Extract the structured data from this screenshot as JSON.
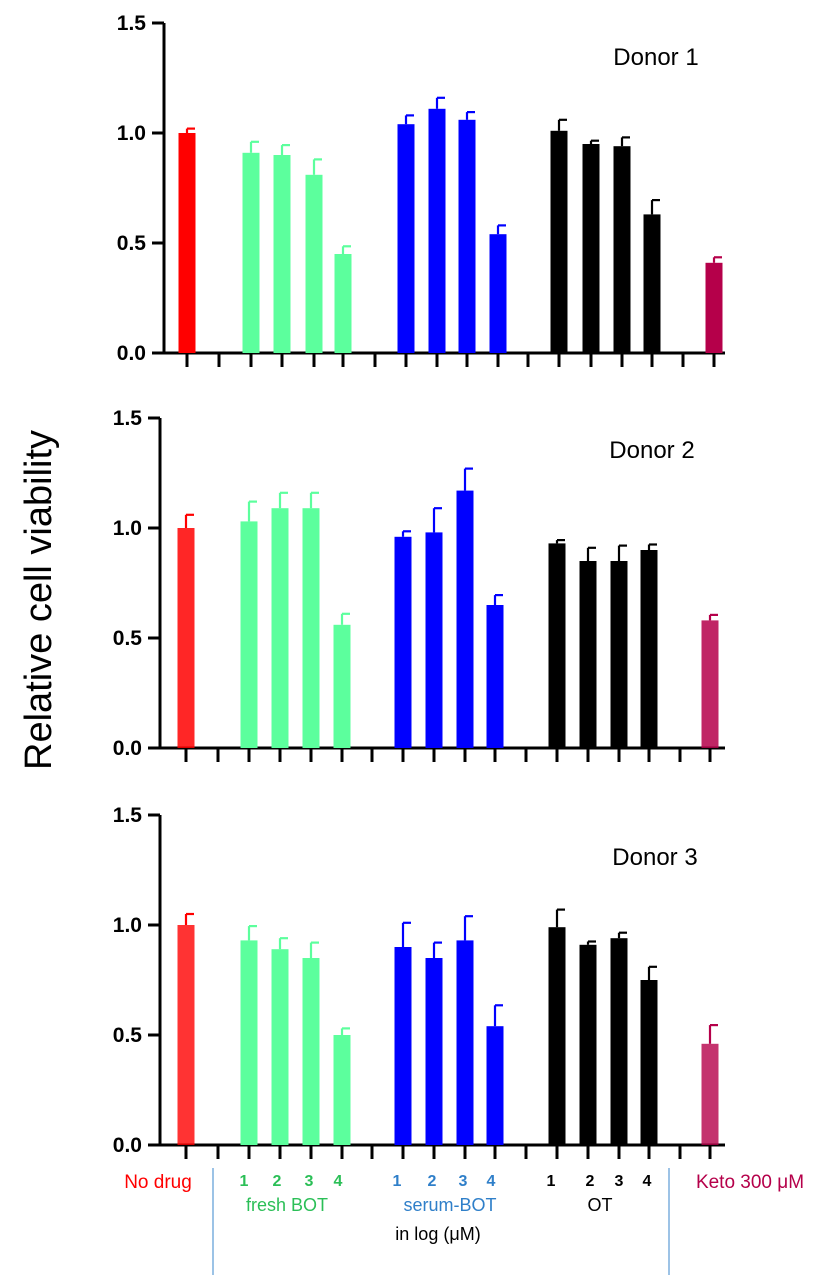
{
  "ylabel": "Relative cell viability",
  "colors": {
    "no_drug": "#ff0000",
    "fresh_bot": "#5cff9d",
    "serum_bot": "#0000ff",
    "ot": "#000000",
    "keto": "#b5004a",
    "fresh_bot_label": "#2bbf57",
    "serum_bot_label": "#2f7fc9",
    "divider": "#5b9bd5"
  },
  "x_labels": {
    "no_drug": "No drug",
    "fresh_bot": "fresh BOT",
    "serum_bot": "serum-BOT",
    "ot": "OT",
    "keto": "Keto 300 μM",
    "log_note": "in log (μM)",
    "fresh_nums": [
      "1",
      "2",
      "3",
      "4"
    ],
    "serum_nums": [
      "1",
      "2",
      "3",
      "4"
    ],
    "ot_nums": [
      "1",
      "2",
      "3",
      "4"
    ]
  },
  "chart_data": [
    {
      "type": "bar",
      "title": "Donor 1",
      "ylabel": "Relative cell viability",
      "ylim": [
        0,
        1.5
      ],
      "yticks": [
        "0.0",
        "0.5",
        "1.0",
        "1.5"
      ],
      "bars": [
        {
          "group": "No drug",
          "value": 1.0,
          "err": 0.02,
          "color": "#ff0000"
        },
        {
          "group": "fresh BOT",
          "dose": "1",
          "value": 0.91,
          "err": 0.05,
          "color": "#5cff9d"
        },
        {
          "group": "fresh BOT",
          "dose": "2",
          "value": 0.9,
          "err": 0.045,
          "color": "#5cff9d"
        },
        {
          "group": "fresh BOT",
          "dose": "3",
          "value": 0.81,
          "err": 0.07,
          "color": "#5cff9d"
        },
        {
          "group": "fresh BOT",
          "dose": "4",
          "value": 0.45,
          "err": 0.035,
          "color": "#5cff9d"
        },
        {
          "group": "serum-BOT",
          "dose": "1",
          "value": 1.04,
          "err": 0.04,
          "color": "#0000ff"
        },
        {
          "group": "serum-BOT",
          "dose": "2",
          "value": 1.11,
          "err": 0.05,
          "color": "#0000ff"
        },
        {
          "group": "serum-BOT",
          "dose": "3",
          "value": 1.06,
          "err": 0.035,
          "color": "#0000ff"
        },
        {
          "group": "serum-BOT",
          "dose": "4",
          "value": 0.54,
          "err": 0.04,
          "color": "#0000ff"
        },
        {
          "group": "OT",
          "dose": "1",
          "value": 1.01,
          "err": 0.05,
          "color": "#000000"
        },
        {
          "group": "OT",
          "dose": "2",
          "value": 0.95,
          "err": 0.015,
          "color": "#000000"
        },
        {
          "group": "OT",
          "dose": "3",
          "value": 0.94,
          "err": 0.04,
          "color": "#000000"
        },
        {
          "group": "OT",
          "dose": "4",
          "value": 0.63,
          "err": 0.065,
          "color": "#000000"
        },
        {
          "group": "Keto 300 μM",
          "value": 0.41,
          "err": 0.025,
          "color": "#b5004a"
        }
      ]
    },
    {
      "type": "bar",
      "title": "Donor 2",
      "ylabel": "Relative cell viability",
      "ylim": [
        0,
        1.5
      ],
      "yticks": [
        "0.0",
        "0.5",
        "1.0",
        "1.5"
      ],
      "bars": [
        {
          "group": "No drug",
          "value": 1.0,
          "err": 0.06,
          "color": "#ff0000"
        },
        {
          "group": "fresh BOT",
          "dose": "1",
          "value": 1.03,
          "err": 0.09,
          "color": "#5cff9d"
        },
        {
          "group": "fresh BOT",
          "dose": "2",
          "value": 1.09,
          "err": 0.07,
          "color": "#5cff9d"
        },
        {
          "group": "fresh BOT",
          "dose": "3",
          "value": 1.09,
          "err": 0.07,
          "color": "#5cff9d"
        },
        {
          "group": "fresh BOT",
          "dose": "4",
          "value": 0.56,
          "err": 0.05,
          "color": "#5cff9d"
        },
        {
          "group": "serum-BOT",
          "dose": "1",
          "value": 0.96,
          "err": 0.025,
          "color": "#0000ff"
        },
        {
          "group": "serum-BOT",
          "dose": "2",
          "value": 0.98,
          "err": 0.11,
          "color": "#0000ff"
        },
        {
          "group": "serum-BOT",
          "dose": "3",
          "value": 1.17,
          "err": 0.1,
          "color": "#0000ff"
        },
        {
          "group": "serum-BOT",
          "dose": "4",
          "value": 0.65,
          "err": 0.045,
          "color": "#0000ff"
        },
        {
          "group": "OT",
          "dose": "1",
          "value": 0.93,
          "err": 0.015,
          "color": "#000000"
        },
        {
          "group": "OT",
          "dose": "2",
          "value": 0.85,
          "err": 0.06,
          "color": "#000000"
        },
        {
          "group": "OT",
          "dose": "3",
          "value": 0.85,
          "err": 0.07,
          "color": "#000000"
        },
        {
          "group": "OT",
          "dose": "4",
          "value": 0.9,
          "err": 0.025,
          "color": "#000000"
        },
        {
          "group": "Keto 300 μM",
          "value": 0.58,
          "err": 0.025,
          "color": "#b5004a"
        }
      ]
    },
    {
      "type": "bar",
      "title": "Donor 3",
      "ylabel": "Relative cell viability",
      "ylim": [
        0,
        1.5
      ],
      "yticks": [
        "0.0",
        "0.5",
        "1.0",
        "1.5"
      ],
      "bars": [
        {
          "group": "No drug",
          "value": 1.0,
          "err": 0.05,
          "color": "#ff0000"
        },
        {
          "group": "fresh BOT",
          "dose": "1",
          "value": 0.93,
          "err": 0.065,
          "color": "#5cff9d"
        },
        {
          "group": "fresh BOT",
          "dose": "2",
          "value": 0.89,
          "err": 0.05,
          "color": "#5cff9d"
        },
        {
          "group": "fresh BOT",
          "dose": "3",
          "value": 0.85,
          "err": 0.07,
          "color": "#5cff9d"
        },
        {
          "group": "fresh BOT",
          "dose": "4",
          "value": 0.5,
          "err": 0.03,
          "color": "#5cff9d"
        },
        {
          "group": "serum-BOT",
          "dose": "1",
          "value": 0.9,
          "err": 0.11,
          "color": "#0000ff"
        },
        {
          "group": "serum-BOT",
          "dose": "2",
          "value": 0.85,
          "err": 0.07,
          "color": "#0000ff"
        },
        {
          "group": "serum-BOT",
          "dose": "3",
          "value": 0.93,
          "err": 0.11,
          "color": "#0000ff"
        },
        {
          "group": "serum-BOT",
          "dose": "4",
          "value": 0.54,
          "err": 0.095,
          "color": "#0000ff"
        },
        {
          "group": "OT",
          "dose": "1",
          "value": 0.99,
          "err": 0.08,
          "color": "#000000"
        },
        {
          "group": "OT",
          "dose": "2",
          "value": 0.91,
          "err": 0.015,
          "color": "#000000"
        },
        {
          "group": "OT",
          "dose": "3",
          "value": 0.94,
          "err": 0.025,
          "color": "#000000"
        },
        {
          "group": "OT",
          "dose": "4",
          "value": 0.75,
          "err": 0.06,
          "color": "#000000"
        },
        {
          "group": "Keto 300 μM",
          "value": 0.46,
          "err": 0.085,
          "color": "#b5004a"
        }
      ]
    }
  ]
}
